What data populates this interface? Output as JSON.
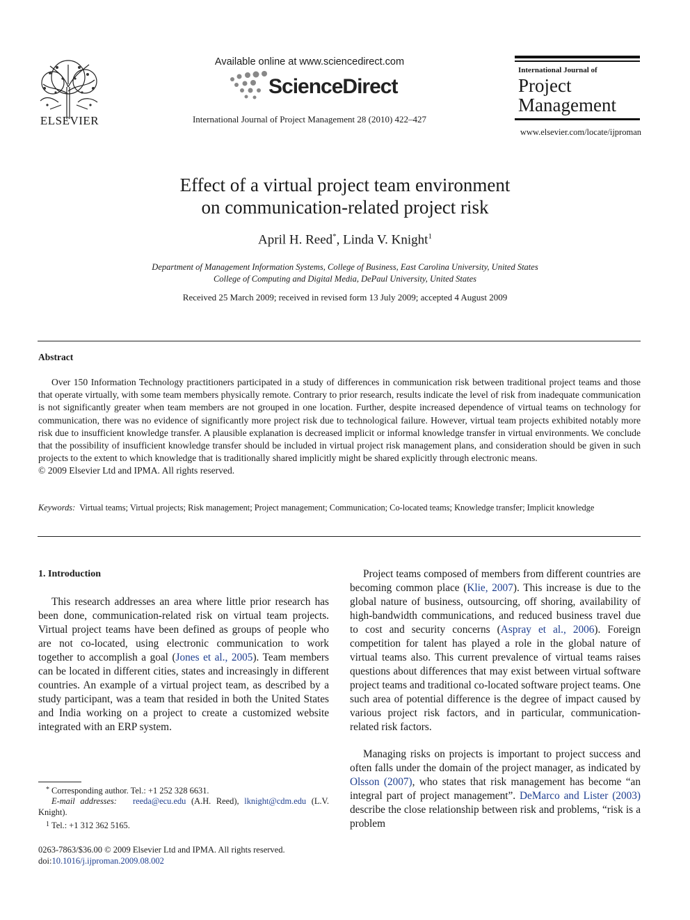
{
  "header": {
    "publisher_logo_text": "ELSEVIER",
    "available_online": "Available online at www.sciencedirect.com",
    "sciencedirect_logo": "ScienceDirect",
    "journal_citation": "International Journal of Project Management 28 (2010) 422–427",
    "journal_name_small": "International Journal of",
    "journal_name_line1": "Project",
    "journal_name_line2": "Management",
    "journal_url": "www.elsevier.com/locate/ijproman"
  },
  "article": {
    "title_line1": "Effect of a virtual project team environment",
    "title_line2": "on communication-related project risk",
    "author1": "April H. Reed",
    "author1_mark": "*",
    "author_sep": ", ",
    "author2": "Linda V. Knight",
    "author2_mark": "1",
    "affiliation1": "Department of Management Information Systems, College of Business, East Carolina University, United States",
    "affiliation2": "College of Computing and Digital Media, DePaul University, United States",
    "received": "Received 25 March 2009; received in revised form 13 July 2009; accepted 4 August 2009"
  },
  "abstract": {
    "heading": "Abstract",
    "text": "Over 150 Information Technology practitioners participated in a study of differences in communication risk between traditional project teams and those that operate virtually, with some team members physically remote. Contrary to prior research, results indicate the level of risk from inadequate communication is not significantly greater when team members are not grouped in one location. Further, despite increased dependence of virtual teams on technology for communication, there was no evidence of significantly more project risk due to technological failure. However, virtual team projects exhibited notably more risk due to insufficient knowledge transfer. A plausible explanation is decreased implicit or informal knowledge transfer in virtual environments. We conclude that the possibility of insufficient knowledge transfer should be included in virtual project risk management plans, and consideration should be given in such projects to the extent to which knowledge that is traditionally shared implicitly might be shared explicitly through electronic means.",
    "copyright": "© 2009 Elsevier Ltd and IPMA. All rights reserved.",
    "keywords_label": "Keywords:",
    "keywords": "Virtual teams; Virtual projects; Risk management; Project management; Communication; Co-located teams; Knowledge transfer; Implicit knowledge"
  },
  "intro": {
    "heading": "1. Introduction",
    "p1_a": "This research addresses an area where little prior research has been done, communication-related risk on virtual team projects. Virtual project teams have been defined as groups of people who are not co-located, using electronic communication to work together to accomplish a goal (",
    "p1_cite1": "Jones et al., 2005",
    "p1_b": "). Team members can be located in different cities, states and increasingly in different countries. An example of a virtual project team, as described by a study participant, was a team that resided in both the United States and India working on a project to create a customized website integrated with an ERP system.",
    "p2_a": "Project teams composed of members from different countries are becoming common place (",
    "p2_cite1": "Klie, 2007",
    "p2_b": "). This increase is due to the global nature of business, outsourcing, off shoring, availability of high-bandwidth communications, and reduced business travel due to cost and security concerns (",
    "p2_cite2": "Aspray et al., 2006",
    "p2_c": "). Foreign competition for talent has played a role in the global nature of virtual teams also. This current prevalence of virtual teams raises questions about differences that may exist between virtual software project teams and traditional co-located software project teams. One such area of potential difference is the degree of impact caused by various project risk factors, and in particular, communication-related risk factors.",
    "p3_a": "Managing risks on projects is important to project success and often falls under the domain of the project manager, as indicated by ",
    "p3_cite1": "Olsson (2007)",
    "p3_b": ", who states that risk management has become “an integral part of project management”. ",
    "p3_cite2": "DeMarco and Lister (2003)",
    "p3_c": " describe the close relationship between risk and problems, “risk is a problem"
  },
  "footnotes": {
    "fn1_mark": "*",
    "fn1": "Corresponding author. Tel.: +1 252 328 6631.",
    "fn2_label": "E-mail addresses:",
    "fn2_email1": "reeda@ecu.edu",
    "fn2_name1": " (A.H. Reed), ",
    "fn2_email2": "lknight@cdm.edu",
    "fn2_name2": " (L.V. Knight).",
    "fn3_mark": "1",
    "fn3": "Tel.: +1 312 362 5165."
  },
  "footer": {
    "issn": "0263-7863/$36.00 © 2009 Elsevier Ltd and IPMA. All rights reserved.",
    "doi_label": "doi:",
    "doi": "10.1016/j.ijproman.2009.08.002"
  }
}
